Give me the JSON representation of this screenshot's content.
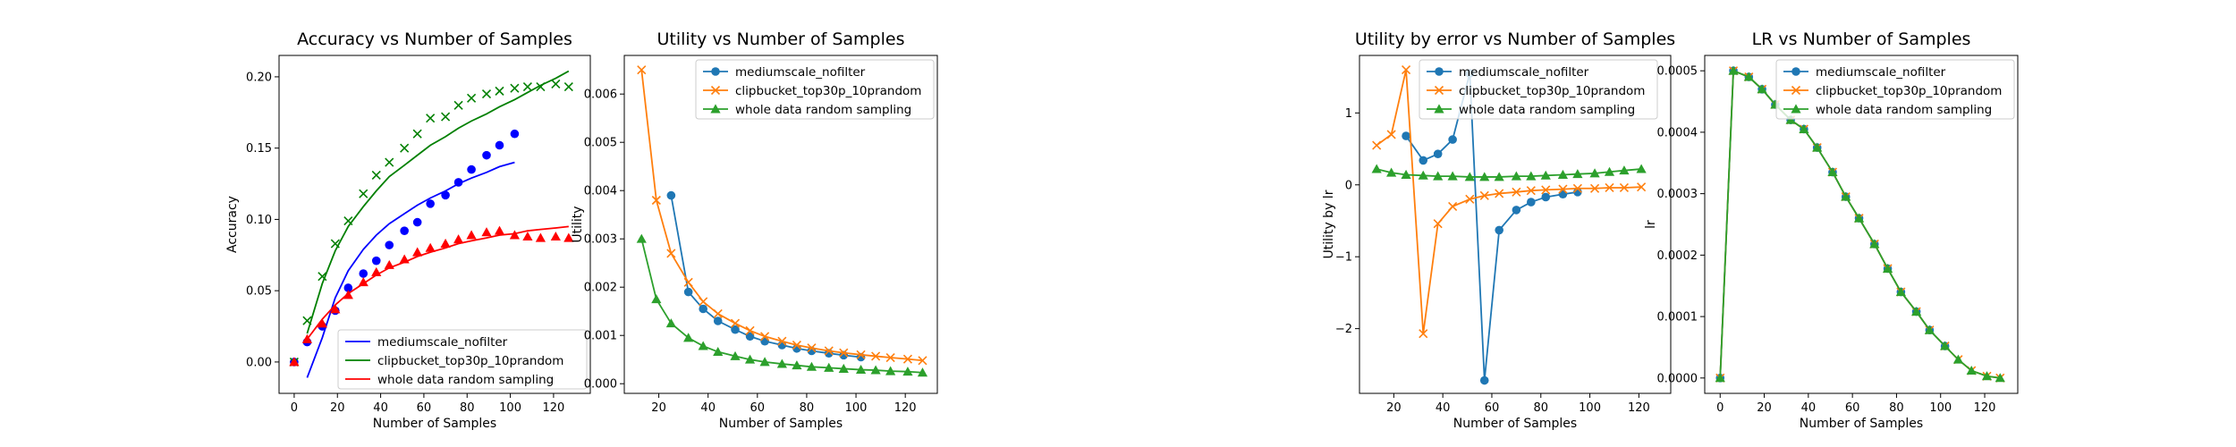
{
  "colors": {
    "blue": "#0000ff",
    "green": "#008000",
    "red": "#ff0000",
    "c0": "#1f77b4",
    "c1": "#ff7f0e",
    "c2": "#2ca02c"
  },
  "chart_data": [
    {
      "type": "scatter",
      "title": "Accuracy vs Number of Samples",
      "xlabel": "Number of Samples",
      "ylabel": "Accuracy",
      "xlim": [
        -7,
        137
      ],
      "ylim": [
        -0.022,
        0.215
      ],
      "xticks": [
        0,
        20,
        40,
        60,
        80,
        100,
        120
      ],
      "yticks": [
        0.0,
        0.05,
        0.1,
        0.15,
        0.2
      ],
      "ytick_labels": [
        "0.00",
        "0.05",
        "0.10",
        "0.15",
        "0.20"
      ],
      "legend_loc": "lower right",
      "series": [
        {
          "name": "mediumscale_nofilter",
          "color": "#0000ff",
          "marker": "o",
          "x": [
            0,
            6,
            13,
            19,
            25,
            32,
            38,
            44,
            51,
            57,
            63,
            70,
            76,
            82,
            89,
            95,
            102
          ],
          "y": [
            0.0,
            0.014,
            0.025,
            0.036,
            0.052,
            0.062,
            0.071,
            0.082,
            0.092,
            0.098,
            0.111,
            0.117,
            0.126,
            0.135,
            0.145,
            0.152,
            0.16
          ],
          "fit_x": [
            6,
            13,
            19,
            25,
            32,
            38,
            44,
            51,
            57,
            63,
            70,
            76,
            82,
            89,
            95,
            102
          ],
          "fit_y": [
            -0.011,
            0.017,
            0.045,
            0.064,
            0.079,
            0.089,
            0.097,
            0.104,
            0.11,
            0.115,
            0.12,
            0.125,
            0.129,
            0.133,
            0.137,
            0.14
          ]
        },
        {
          "name": "clipbucket_top30p_10prandom",
          "color": "#008000",
          "marker": "x",
          "x": [
            0,
            6,
            13,
            19,
            25,
            32,
            38,
            44,
            51,
            57,
            63,
            70,
            76,
            82,
            89,
            95,
            102,
            108,
            114,
            121,
            127
          ],
          "y": [
            0.0,
            0.029,
            0.06,
            0.083,
            0.099,
            0.118,
            0.131,
            0.14,
            0.15,
            0.16,
            0.171,
            0.172,
            0.18,
            0.185,
            0.188,
            0.19,
            0.192,
            0.193,
            0.193,
            0.195,
            0.193
          ],
          "fit_x": [
            6,
            13,
            19,
            25,
            32,
            38,
            44,
            51,
            57,
            63,
            70,
            76,
            82,
            89,
            95,
            102,
            108,
            114,
            121,
            127
          ],
          "fit_y": [
            0.02,
            0.055,
            0.078,
            0.095,
            0.109,
            0.12,
            0.13,
            0.138,
            0.145,
            0.152,
            0.158,
            0.164,
            0.169,
            0.174,
            0.179,
            0.184,
            0.189,
            0.194,
            0.199,
            0.204
          ]
        },
        {
          "name": "whole data random sampling",
          "color": "#ff0000",
          "marker": "^",
          "x": [
            0,
            6,
            13,
            19,
            25,
            32,
            38,
            44,
            51,
            57,
            63,
            70,
            76,
            82,
            89,
            95,
            102,
            108,
            114,
            121,
            127
          ],
          "y": [
            0.0,
            0.016,
            0.027,
            0.037,
            0.047,
            0.056,
            0.063,
            0.068,
            0.072,
            0.077,
            0.08,
            0.083,
            0.086,
            0.089,
            0.091,
            0.092,
            0.089,
            0.088,
            0.087,
            0.088,
            0.087
          ],
          "fit_x": [
            6,
            13,
            19,
            25,
            32,
            38,
            44,
            51,
            57,
            63,
            70,
            76,
            82,
            89,
            95,
            102,
            108,
            114,
            121,
            127
          ],
          "fit_y": [
            0.016,
            0.03,
            0.04,
            0.048,
            0.055,
            0.061,
            0.066,
            0.07,
            0.074,
            0.077,
            0.08,
            0.083,
            0.085,
            0.087,
            0.089,
            0.09,
            0.092,
            0.093,
            0.094,
            0.095
          ]
        }
      ]
    },
    {
      "type": "line",
      "title": "Utility vs Number of Samples",
      "xlabel": "Number of Samples",
      "ylabel": "Utility",
      "xlim": [
        6,
        133
      ],
      "ylim": [
        -0.0002,
        0.0068
      ],
      "xticks": [
        20,
        40,
        60,
        80,
        100,
        120
      ],
      "yticks": [
        0.0,
        0.001,
        0.002,
        0.003,
        0.004,
        0.005,
        0.006
      ],
      "ytick_labels": [
        "0.000",
        "0.001",
        "0.002",
        "0.003",
        "0.004",
        "0.005",
        "0.006"
      ],
      "legend_loc": "upper right",
      "series": [
        {
          "name": "mediumscale_nofilter",
          "color": "#1f77b4",
          "marker": "o",
          "x": [
            25,
            32,
            38,
            44,
            51,
            57,
            63,
            70,
            76,
            82,
            89,
            95,
            102
          ],
          "y": [
            0.0039,
            0.0019,
            0.00155,
            0.0013,
            0.00112,
            0.00098,
            0.00088,
            0.0008,
            0.00073,
            0.00068,
            0.00063,
            0.00059,
            0.00055
          ]
        },
        {
          "name": "clipbucket_top30p_10prandom",
          "color": "#ff7f0e",
          "marker": "x",
          "x": [
            13,
            19,
            25,
            32,
            38,
            44,
            51,
            57,
            63,
            70,
            76,
            82,
            89,
            95,
            102,
            108,
            114,
            121,
            127
          ],
          "y": [
            0.0065,
            0.0038,
            0.0027,
            0.0021,
            0.0017,
            0.00145,
            0.00125,
            0.0011,
            0.00098,
            0.00088,
            0.0008,
            0.00074,
            0.00068,
            0.00064,
            0.0006,
            0.00057,
            0.00054,
            0.00051,
            0.00048
          ]
        },
        {
          "name": "whole data random sampling",
          "color": "#2ca02c",
          "marker": "^",
          "x": [
            13,
            19,
            25,
            32,
            38,
            44,
            51,
            57,
            63,
            70,
            76,
            82,
            89,
            95,
            102,
            108,
            114,
            121,
            127
          ],
          "y": [
            0.003,
            0.00175,
            0.00125,
            0.00095,
            0.00078,
            0.00066,
            0.00057,
            0.0005,
            0.00045,
            0.00041,
            0.00038,
            0.00035,
            0.00033,
            0.00031,
            0.00029,
            0.00028,
            0.00026,
            0.00025,
            0.00023
          ]
        }
      ]
    },
    {
      "type": "line",
      "title": "Utility by error vs Number of Samples",
      "xlabel": "Number of Samples",
      "ylabel": "Utility by lr",
      "xlim": [
        6,
        133
      ],
      "ylim": [
        -2.9,
        1.8
      ],
      "xticks": [
        20,
        40,
        60,
        80,
        100,
        120
      ],
      "yticks": [
        -2,
        -1,
        0,
        1
      ],
      "ytick_labels": [
        "−2",
        "−1",
        "0",
        "1"
      ],
      "legend_loc": "upper right",
      "series": [
        {
          "name": "mediumscale_nofilter",
          "color": "#1f77b4",
          "marker": "o",
          "x": [
            25,
            32,
            38,
            44,
            51,
            57,
            63,
            70,
            76,
            82,
            89,
            95
          ],
          "y": [
            0.68,
            0.34,
            0.43,
            0.63,
            1.55,
            -2.72,
            -0.63,
            -0.35,
            -0.24,
            -0.17,
            -0.13,
            -0.1
          ]
        },
        {
          "name": "clipbucket_top30p_10prandom",
          "color": "#ff7f0e",
          "marker": "x",
          "x": [
            13,
            19,
            25,
            32,
            38,
            44,
            51,
            57,
            63,
            70,
            76,
            82,
            89,
            95,
            102,
            108,
            114,
            121
          ],
          "y": [
            0.55,
            0.7,
            1.6,
            -2.07,
            -0.54,
            -0.3,
            -0.2,
            -0.15,
            -0.12,
            -0.1,
            -0.08,
            -0.07,
            -0.06,
            -0.05,
            -0.05,
            -0.04,
            -0.04,
            -0.03
          ]
        },
        {
          "name": "whole data random sampling",
          "color": "#2ca02c",
          "marker": "^",
          "x": [
            13,
            19,
            25,
            32,
            38,
            44,
            51,
            57,
            63,
            70,
            76,
            82,
            89,
            95,
            102,
            108,
            114,
            121
          ],
          "y": [
            0.22,
            0.17,
            0.14,
            0.13,
            0.12,
            0.12,
            0.11,
            0.11,
            0.11,
            0.12,
            0.12,
            0.13,
            0.14,
            0.15,
            0.16,
            0.18,
            0.2,
            0.22
          ]
        }
      ]
    },
    {
      "type": "line",
      "title": "LR vs Number of Samples",
      "xlabel": "Number of Samples",
      "ylabel": "lr",
      "xlim": [
        -7,
        135
      ],
      "ylim": [
        -2.5e-05,
        0.000525
      ],
      "xticks": [
        0,
        20,
        40,
        60,
        80,
        100,
        120
      ],
      "yticks": [
        0.0,
        0.0001,
        0.0002,
        0.0003,
        0.0004,
        0.0005
      ],
      "ytick_labels": [
        "0.0000",
        "0.0001",
        "0.0002",
        "0.0003",
        "0.0004",
        "0.0005"
      ],
      "legend_loc": "upper right",
      "series": [
        {
          "name": "mediumscale_nofilter",
          "color": "#1f77b4",
          "marker": "o",
          "x": [
            0,
            6,
            13,
            19,
            25,
            32,
            38,
            44,
            51,
            57,
            63,
            70,
            76,
            82,
            89,
            95,
            102
          ],
          "y": [
            0.0,
            0.0005,
            0.00049,
            0.00047,
            0.000445,
            0.00042,
            0.000405,
            0.000375,
            0.000335,
            0.000295,
            0.00026,
            0.000218,
            0.000178,
            0.00014,
            0.000108,
            7.8e-05,
            5.2e-05
          ]
        },
        {
          "name": "clipbucket_top30p_10prandom",
          "color": "#ff7f0e",
          "marker": "x",
          "x": [
            0,
            6,
            13,
            19,
            25,
            32,
            38,
            44,
            51,
            57,
            63,
            70,
            76,
            82,
            89,
            95,
            102,
            108,
            114,
            121,
            127
          ],
          "y": [
            0.0,
            0.0005,
            0.00049,
            0.00047,
            0.000445,
            0.00042,
            0.000405,
            0.000375,
            0.000335,
            0.000295,
            0.00026,
            0.000218,
            0.000178,
            0.00014,
            0.000108,
            7.8e-05,
            5.2e-05,
            3e-05,
            1.2e-05,
            3e-06,
            0.0
          ]
        },
        {
          "name": "whole data random sampling",
          "color": "#2ca02c",
          "marker": "^",
          "x": [
            0,
            6,
            13,
            19,
            25,
            32,
            38,
            44,
            51,
            57,
            63,
            70,
            76,
            82,
            89,
            95,
            102,
            108,
            114,
            121,
            127
          ],
          "y": [
            0.0,
            0.0005,
            0.00049,
            0.00047,
            0.000445,
            0.00042,
            0.000405,
            0.000375,
            0.000335,
            0.000295,
            0.00026,
            0.000218,
            0.000178,
            0.00014,
            0.000108,
            7.8e-05,
            5.2e-05,
            3e-05,
            1.2e-05,
            3e-06,
            0.0
          ]
        }
      ]
    }
  ]
}
